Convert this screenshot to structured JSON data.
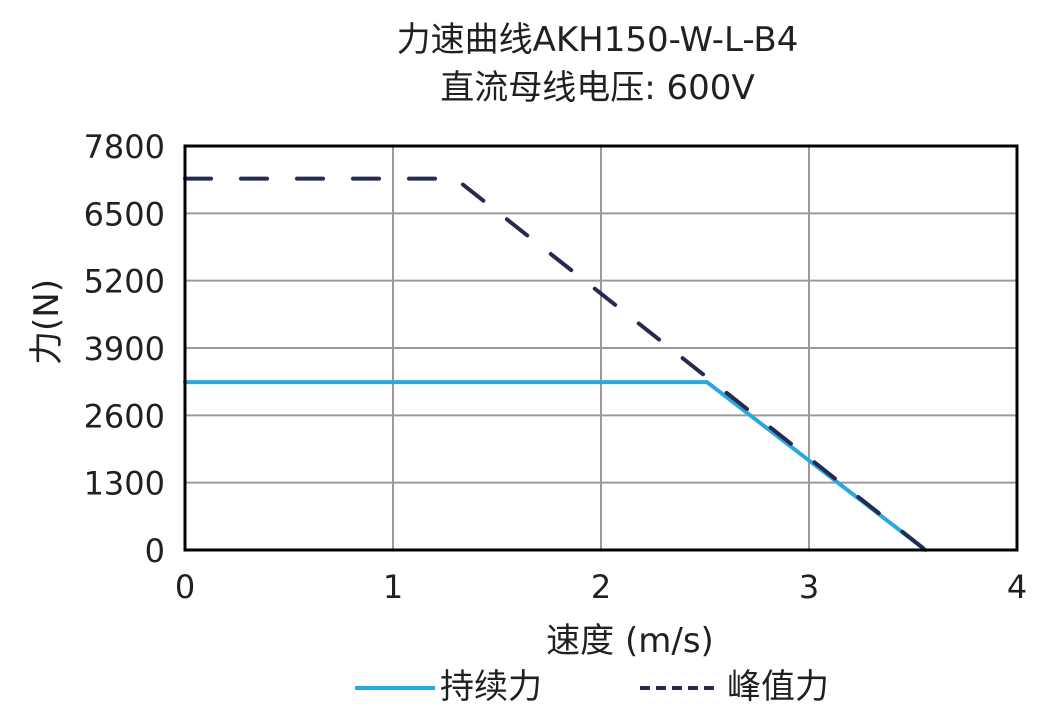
{
  "title_line1": "力速曲线AKH150-W-L-B4",
  "title_line2": "直流母线电压: 600V",
  "chart_data": {
    "type": "line",
    "title": "力速曲线AKH150-W-L-B4 / 直流母线电压: 600V",
    "xlabel": "速度 (m/s)",
    "ylabel": "力(N)",
    "xlim": [
      0,
      4
    ],
    "ylim": [
      0,
      7800
    ],
    "xticks": [
      "0",
      "1",
      "2",
      "3",
      "4"
    ],
    "yticks": [
      "0",
      "1300",
      "2600",
      "3900",
      "5200",
      "6500",
      "7800"
    ],
    "grid": true,
    "legend_position": "bottom",
    "series": [
      {
        "name": "持续力",
        "style": "solid",
        "color": "#29a8e0",
        "x": [
          0,
          2.51,
          3.56
        ],
        "y": [
          3240,
          3240,
          0
        ]
      },
      {
        "name": "峰值力",
        "style": "dashed",
        "color": "#262a50",
        "x": [
          0,
          1.3,
          3.56
        ],
        "y": [
          7170,
          7170,
          0
        ]
      }
    ]
  },
  "legend": {
    "continuous": "持续力",
    "peak": "峰值力"
  }
}
